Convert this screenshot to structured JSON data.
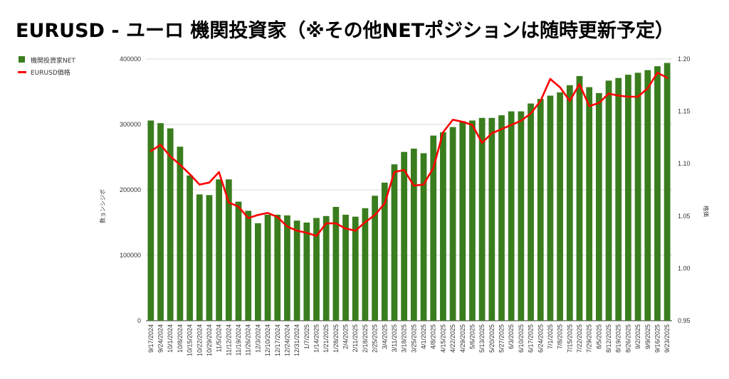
{
  "chart_data": {
    "type": "bar+line",
    "title": "EURUSD - ユーロ 機関投資家（※その他NETポジションは随時更新予定）",
    "ylabel_left": "数ョンシジポ",
    "ylabel_right": "格価",
    "ylim_left": [
      0,
      400000
    ],
    "ylim_right": [
      0.95,
      1.2
    ],
    "yticks_left": [
      "0",
      "100000",
      "200000",
      "300000",
      "400000"
    ],
    "yticks_right": [
      "0.95",
      "1.00",
      "1.05",
      "1.10",
      "1.15",
      "1.20"
    ],
    "legend_position": "top-left",
    "grid": true,
    "colors": {
      "bar": "#3a7d1e",
      "line": "#ff0000"
    },
    "x": [
      "9/17/2024",
      "9/24/2024",
      "10/1/2024",
      "10/8/2024",
      "10/15/2024",
      "10/22/2024",
      "10/29/2024",
      "11/5/2024",
      "11/12/2024",
      "11/19/2024",
      "11/26/2024",
      "12/3/2024",
      "12/10/2024",
      "12/17/2024",
      "12/24/2024",
      "12/31/2024",
      "1/7/2025",
      "1/14/2025",
      "1/21/2025",
      "1/28/2025",
      "2/4/2025",
      "2/11/2025",
      "2/18/2025",
      "2/25/2025",
      "3/4/2025",
      "3/11/2025",
      "3/18/2025",
      "3/25/2025",
      "4/1/2025",
      "4/8/2025",
      "4/15/2025",
      "4/22/2025",
      "4/29/2025",
      "5/6/2025",
      "5/13/2025",
      "5/20/2025",
      "5/27/2025",
      "6/3/2025",
      "6/10/2025",
      "6/17/2025",
      "6/24/2025",
      "7/1/2025",
      "7/8/2025",
      "7/15/2025",
      "7/22/2025",
      "7/29/2025",
      "8/5/2025",
      "8/12/2025",
      "8/19/2025",
      "8/26/2025",
      "9/2/2025",
      "9/9/2025",
      "9/16/2025",
      "9/23/2025"
    ],
    "x_labels_shown": [
      "9/17/2024",
      "9/24/2024",
      "10/1/2024",
      "10/8/2024",
      "10/15/2024",
      "10/22/2024",
      "10/29/2024",
      "11/5/2024",
      "11/12/2024",
      "11/19/2024",
      "11/26/2024",
      "12/3/2024",
      "12/10/2024",
      "12/17/2024",
      "12/24/2024",
      "12/31/2024",
      "1/7/2025",
      "1/14/2025",
      "1/21/2025",
      "1/28/2025",
      "2/4/2025",
      "2/11/2025",
      "2/18/2025",
      "2/25/2025",
      "3/4/2025",
      "3/11/2025",
      "3/18/2025",
      "3/25/2025",
      "4/1/2025",
      "4/8/2025",
      "4/15/2025",
      "4/22/2025",
      "4/29/2025",
      "5/6/2025",
      "5/13/2025",
      "5/20/2025",
      "5/27/2025",
      "6/3/2025",
      "6/10/2025",
      "6/17/2025",
      "6/24/2025",
      "7/1/2025",
      "7/8/2025",
      "7/15/2025",
      "7/22/2025",
      "7/29/2025",
      "8/5/2025",
      "8/12/2025",
      "8/19/2025",
      "8/26/2025",
      "9/2/2025",
      "9/9/2025",
      "9/16/2025",
      "9/23/2025"
    ],
    "series": [
      {
        "name": "機関投資家NET",
        "type": "bar",
        "axis": "left",
        "values": [
          306000,
          302000,
          294000,
          266000,
          222000,
          193000,
          192000,
          216000,
          216000,
          182000,
          168000,
          149000,
          162000,
          162000,
          161000,
          153000,
          150000,
          157000,
          160000,
          174000,
          162000,
          159000,
          172000,
          191000,
          211000,
          239000,
          258000,
          263000,
          256000,
          283000,
          288000,
          296000,
          305000,
          306000,
          310000,
          310000,
          314000,
          320000,
          320000,
          332000,
          339000,
          344000,
          349000,
          360000,
          374000,
          357000,
          348000,
          367000,
          371000,
          376000,
          379000,
          383000,
          389000,
          394000
        ]
      },
      {
        "name": "EURUSD価格",
        "type": "line",
        "axis": "right",
        "values": [
          1.112,
          1.118,
          1.107,
          1.099,
          1.09,
          1.08,
          1.082,
          1.092,
          1.063,
          1.059,
          1.048,
          1.051,
          1.053,
          1.049,
          1.04,
          1.036,
          1.034,
          1.031,
          1.043,
          1.043,
          1.038,
          1.036,
          1.044,
          1.051,
          1.062,
          1.092,
          1.094,
          1.079,
          1.08,
          1.096,
          1.13,
          1.142,
          1.14,
          1.137,
          1.12,
          1.129,
          1.133,
          1.137,
          1.141,
          1.148,
          1.16,
          1.181,
          1.173,
          1.16,
          1.176,
          1.155,
          1.158,
          1.167,
          1.165,
          1.164,
          1.164,
          1.172,
          1.187,
          1.182
        ]
      }
    ]
  }
}
